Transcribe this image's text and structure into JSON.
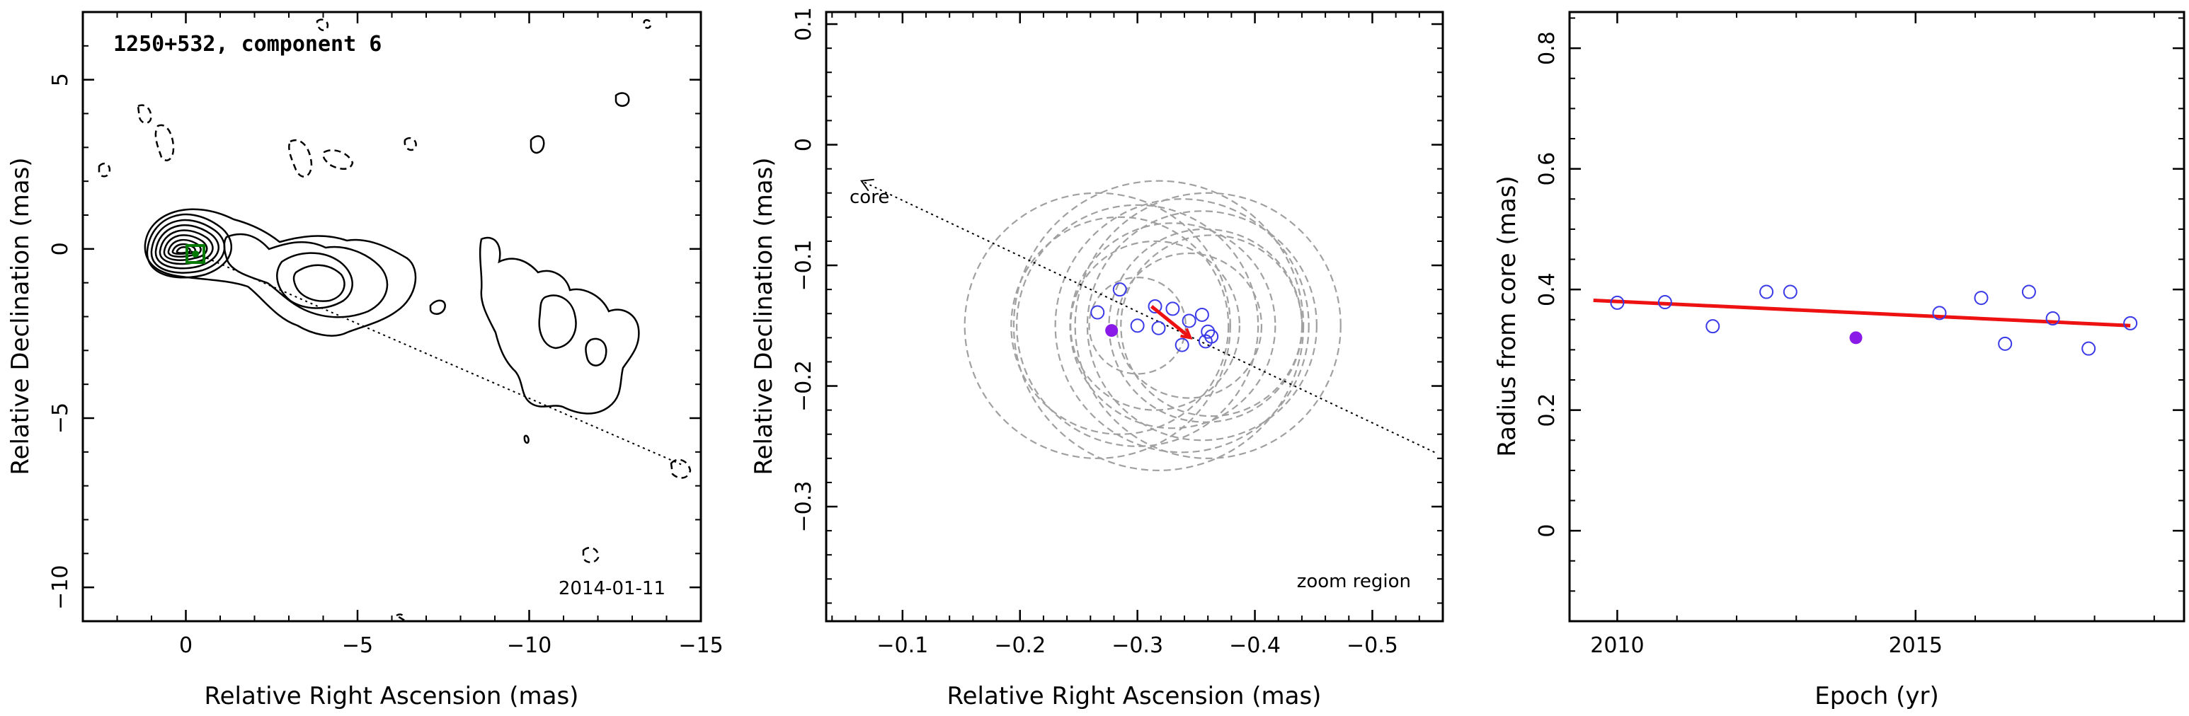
{
  "chart_data": [
    {
      "type": "contour",
      "title": "1250+532, component 6",
      "date": "2014-01-11",
      "xlabel": "Relative Right Ascension (mas)",
      "ylabel": "Relative Declination (mas)",
      "xlim": [
        3,
        -15
      ],
      "ylim": [
        -11,
        7
      ],
      "xticks": [
        0,
        -5,
        -10,
        -15
      ],
      "xtick_labels": [
        "0",
        "−5",
        "−10",
        "−15"
      ],
      "yticks": [
        5,
        0,
        -5,
        -10
      ],
      "ytick_labels": [
        "5",
        "0",
        "−5",
        "−10"
      ],
      "component_position": [
        -0.28,
        -0.15
      ],
      "jet_axis_line": {
        "from": [
          0,
          0
        ],
        "to": [
          -14.5,
          -6.4
        ],
        "style": "dotted"
      },
      "marker_color": "#007a00",
      "grid": false
    },
    {
      "type": "scatter",
      "xlabel": "Relative Right Ascension (mas)",
      "ylabel": "Relative Declination (mas)",
      "annotation_zoom": "zoom region",
      "annotation_core": "core",
      "xlim": [
        -0.035,
        -0.56
      ],
      "ylim": [
        -0.395,
        0.11
      ],
      "xticks": [
        -0.1,
        -0.2,
        -0.3,
        -0.4,
        -0.5
      ],
      "xtick_labels": [
        "−0.1",
        "−0.2",
        "−0.3",
        "−0.4",
        "−0.5"
      ],
      "yticks": [
        0.1,
        0,
        -0.1,
        -0.2,
        -0.3
      ],
      "ytick_labels": [
        "0.1",
        "0",
        "−0.1",
        "−0.2",
        "−0.3"
      ],
      "points": [
        {
          "x": -0.266,
          "y": -0.139
        },
        {
          "x": -0.285,
          "y": -0.12
        },
        {
          "x": -0.3,
          "y": -0.15
        },
        {
          "x": -0.315,
          "y": -0.134
        },
        {
          "x": -0.318,
          "y": -0.152
        },
        {
          "x": -0.33,
          "y": -0.136
        },
        {
          "x": -0.338,
          "y": -0.166
        },
        {
          "x": -0.344,
          "y": -0.146
        },
        {
          "x": -0.355,
          "y": -0.141
        },
        {
          "x": -0.358,
          "y": -0.163
        },
        {
          "x": -0.36,
          "y": -0.155
        },
        {
          "x": -0.363,
          "y": -0.159
        }
      ],
      "highlight_point": {
        "x": -0.278,
        "y": -0.154
      },
      "error_circles": [
        {
          "x": -0.266,
          "r": 0.11
        },
        {
          "x": -0.285,
          "r": 0.09
        },
        {
          "x": -0.3,
          "r": 0.1
        },
        {
          "x": -0.315,
          "r": 0.07
        },
        {
          "x": -0.318,
          "r": 0.12
        },
        {
          "x": -0.33,
          "r": 0.085
        },
        {
          "x": -0.338,
          "r": 0.105
        },
        {
          "x": -0.344,
          "r": 0.06
        },
        {
          "x": -0.355,
          "r": 0.095
        },
        {
          "x": -0.358,
          "r": 0.08
        },
        {
          "x": -0.36,
          "r": 0.11
        },
        {
          "x": -0.363,
          "r": 0.075
        },
        {
          "x": -0.3,
          "r": 0.04
        }
      ],
      "velocity_vector": {
        "from": [
          -0.312,
          -0.134
        ],
        "to": [
          -0.345,
          -0.16
        ]
      },
      "core_direction_line": {
        "from": [
          -0.553,
          -0.255
        ],
        "to": [
          -0.065,
          -0.03
        ],
        "style": "dotted"
      },
      "point_color": "#3a3ae8",
      "highlight_color": "#8a1ae8",
      "vector_color": "#ee1111",
      "circle_color": "#a0a0a0",
      "grid": false
    },
    {
      "type": "scatter",
      "xlabel": "Epoch (yr)",
      "ylabel": "Radius from core (mas)",
      "xlim": [
        2009.2,
        2019.5
      ],
      "ylim": [
        -0.15,
        0.86
      ],
      "xticks": [
        2010,
        2015
      ],
      "xtick_labels": [
        "2010",
        "2015"
      ],
      "yticks": [
        0,
        0.2,
        0.4,
        0.6,
        0.8
      ],
      "ytick_labels": [
        "0",
        "0.2",
        "0.4",
        "0.6",
        "0.8"
      ],
      "points": [
        {
          "x": 2010.0,
          "y": 0.378
        },
        {
          "x": 2010.8,
          "y": 0.379
        },
        {
          "x": 2011.6,
          "y": 0.339
        },
        {
          "x": 2012.5,
          "y": 0.396
        },
        {
          "x": 2012.9,
          "y": 0.396
        },
        {
          "x": 2015.4,
          "y": 0.361
        },
        {
          "x": 2016.1,
          "y": 0.386
        },
        {
          "x": 2016.5,
          "y": 0.31
        },
        {
          "x": 2016.9,
          "y": 0.396
        },
        {
          "x": 2017.3,
          "y": 0.352
        },
        {
          "x": 2017.9,
          "y": 0.302
        },
        {
          "x": 2018.6,
          "y": 0.344
        }
      ],
      "highlight_point": {
        "x": 2014.0,
        "y": 0.32
      },
      "fit_line": {
        "x": [
          2009.6,
          2018.6
        ],
        "y": [
          0.382,
          0.34
        ]
      },
      "point_color": "#3a3ae8",
      "highlight_color": "#8a1ae8",
      "line_color": "#ee1111",
      "grid": false
    }
  ]
}
